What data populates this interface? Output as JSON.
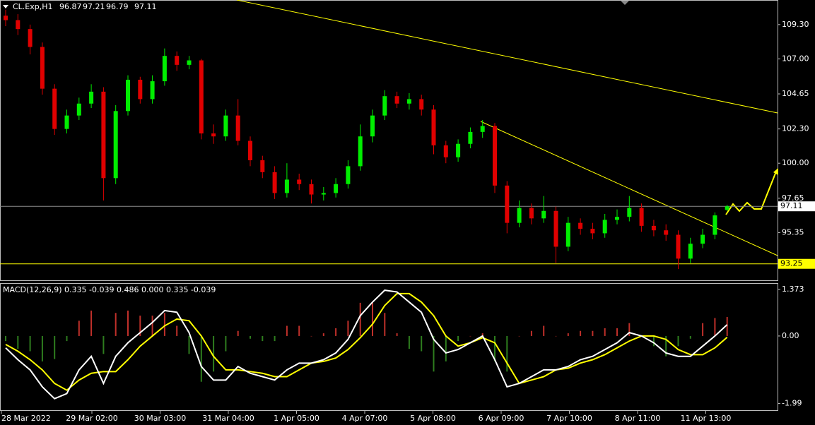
{
  "chart_data": [
    {
      "type": "candlestick",
      "title": "CL.Exp,H1",
      "open": [
        109.9,
        109.6,
        109.0,
        107.8,
        105.0,
        102.3,
        103.2,
        104.0,
        104.8,
        99.0,
        103.5,
        105.6,
        104.3,
        105.5,
        107.2,
        106.6,
        106.9,
        102.0,
        101.8,
        103.2,
        101.5,
        100.2,
        99.4,
        98.0,
        98.9,
        98.6,
        97.9,
        98.0,
        98.6,
        99.8,
        101.8,
        103.2,
        104.5,
        104.0,
        104.3,
        103.6,
        101.2,
        100.4,
        101.3,
        102.1,
        102.5,
        98.5,
        96.0,
        97.0,
        96.3,
        96.8,
        94.4,
        96.0,
        95.6,
        95.3,
        96.2,
        96.4,
        97.0,
        95.8,
        95.5,
        95.2,
        93.6,
        94.6,
        95.2,
        96.87
      ],
      "high": [
        110.3,
        110.0,
        109.3,
        108.1,
        105.3,
        103.6,
        104.4,
        105.3,
        105.1,
        103.9,
        105.9,
        105.8,
        105.9,
        107.7,
        107.5,
        107.2,
        107.0,
        102.6,
        103.6,
        104.3,
        101.8,
        100.5,
        99.8,
        100.0,
        99.3,
        98.9,
        98.4,
        99.0,
        100.2,
        102.6,
        103.6,
        104.9,
        104.8,
        104.7,
        104.6,
        103.9,
        101.5,
        101.6,
        102.4,
        102.9,
        102.7,
        98.8,
        97.5,
        97.3,
        97.8,
        97.1,
        96.4,
        96.3,
        96.0,
        96.6,
        96.9,
        97.8,
        97.3,
        96.2,
        95.9,
        95.5,
        95.0,
        95.6,
        96.7,
        97.21
      ],
      "low": [
        109.2,
        108.6,
        107.3,
        104.6,
        101.9,
        102.0,
        102.9,
        103.7,
        97.5,
        98.6,
        103.2,
        104.0,
        104.0,
        105.2,
        106.2,
        106.3,
        101.6,
        101.3,
        101.5,
        101.2,
        99.8,
        99.0,
        97.6,
        97.7,
        98.2,
        97.3,
        97.5,
        97.7,
        98.3,
        99.5,
        101.4,
        102.9,
        103.7,
        103.6,
        103.2,
        100.6,
        100.0,
        100.1,
        101.0,
        101.7,
        98.0,
        95.3,
        95.7,
        95.9,
        96.0,
        93.3,
        94.1,
        95.2,
        94.9,
        95.0,
        95.9,
        96.1,
        95.4,
        95.1,
        94.8,
        92.9,
        93.3,
        94.3,
        94.9,
        96.79
      ],
      "close": [
        109.6,
        109.0,
        107.8,
        105.0,
        102.3,
        103.2,
        104.0,
        104.8,
        99.0,
        103.5,
        105.6,
        104.3,
        105.5,
        107.2,
        106.6,
        106.9,
        102.0,
        101.8,
        103.2,
        101.5,
        100.2,
        99.4,
        98.0,
        98.9,
        98.6,
        97.9,
        98.0,
        98.6,
        99.8,
        101.8,
        103.2,
        104.5,
        104.0,
        104.3,
        103.6,
        101.2,
        100.4,
        101.3,
        102.1,
        102.5,
        98.5,
        96.0,
        97.0,
        96.3,
        96.8,
        94.4,
        96.0,
        95.6,
        95.3,
        96.2,
        96.4,
        97.0,
        95.8,
        95.5,
        95.2,
        93.6,
        94.6,
        95.2,
        96.5,
        97.11
      ],
      "up_color": "#00ee00",
      "down_color": "#e00000",
      "ylim": [
        92.1,
        110.95
      ],
      "yticks": [
        {
          "value": 109.3,
          "label": "109.30"
        },
        {
          "value": 107,
          "label": "107.00"
        },
        {
          "value": 104.65,
          "label": "104.65"
        },
        {
          "value": 102.3,
          "label": "102.30"
        },
        {
          "value": 100,
          "label": "100.00"
        },
        97.65,
        95.35
      ],
      "price_lines": [
        {
          "value": 97.11,
          "color": "#8c8c8c"
        },
        {
          "value": 93.25,
          "color": "#ffff00"
        }
      ],
      "time_labels": [
        "28 Mar 2022",
        "29 Mar 02:00",
        "30 Mar 03:00",
        "31 Mar 04:00",
        "1 Apr 05:00",
        "4 Apr 07:00",
        "5 Apr 08:00",
        "6 Apr 09:00",
        "7 Apr 10:00",
        "8 Apr 11:00",
        "11 Apr 13:00"
      ]
    },
    {
      "type": "macd",
      "title": "MACD(12,26,9) 0.335 -0.039 0.486 0.000 0.335 -0.039",
      "histogram": [
        -0.15,
        -0.38,
        -0.45,
        -0.75,
        -0.68,
        -0.15,
        0.45,
        0.75,
        -0.53,
        0.68,
        0.75,
        0.6,
        0.6,
        0.68,
        0.3,
        -0.53,
        -1.35,
        -1.05,
        -0.45,
        0.15,
        -0.08,
        -0.15,
        -0.15,
        0.3,
        0.3,
        0,
        0.08,
        0.23,
        0.45,
        0.98,
        0.98,
        0.68,
        0.08,
        -0.38,
        -0.45,
        -1.05,
        -0.75,
        -0.15,
        0,
        0.08,
        -0.75,
        -1.05,
        0,
        0.15,
        0.3,
        0,
        0.08,
        0.15,
        0.15,
        0.23,
        0.23,
        0.38,
        0,
        -0.3,
        -0.6,
        -0.3,
        -0.08,
        0.38,
        0.53,
        0.56
      ],
      "main": [
        -0.35,
        -0.7,
        -1.0,
        -1.5,
        -1.85,
        -1.7,
        -1.0,
        -0.6,
        -1.4,
        -0.6,
        -0.2,
        0.1,
        0.4,
        0.75,
        0.7,
        0.1,
        -0.9,
        -1.3,
        -1.3,
        -0.9,
        -1.1,
        -1.2,
        -1.3,
        -1.0,
        -0.8,
        -0.8,
        -0.7,
        -0.5,
        -0.1,
        0.6,
        1.0,
        1.35,
        1.3,
        1.0,
        0.7,
        -0.1,
        -0.5,
        -0.4,
        -0.2,
        0,
        -0.7,
        -1.5,
        -1.4,
        -1.2,
        -1.0,
        -1.0,
        -0.9,
        -0.7,
        -0.6,
        -0.4,
        -0.2,
        0.1,
        0,
        -0.2,
        -0.5,
        -0.6,
        -0.6,
        -0.3,
        0,
        0.335
      ],
      "signal": [
        -0.25,
        -0.45,
        -0.7,
        -1.0,
        -1.4,
        -1.6,
        -1.3,
        -1.1,
        -1.05,
        -1.05,
        -0.7,
        -0.3,
        0,
        0.3,
        0.5,
        0.45,
        0,
        -0.6,
        -1.0,
        -1.0,
        -1.05,
        -1.1,
        -1.2,
        -1.2,
        -1.0,
        -0.8,
        -0.75,
        -0.65,
        -0.4,
        -0.05,
        0.35,
        0.9,
        1.25,
        1.25,
        1.0,
        0.6,
        0,
        -0.3,
        -0.2,
        -0.05,
        -0.2,
        -0.8,
        -1.4,
        -1.3,
        -1.2,
        -1.0,
        -0.95,
        -0.8,
        -0.7,
        -0.55,
        -0.35,
        -0.15,
        0,
        0,
        -0.1,
        -0.4,
        -0.55,
        -0.55,
        -0.35,
        -0.039
      ],
      "hist_up_color": "#c0302a",
      "hist_down_color": "#2e7d1e",
      "main_color": "#ffffff",
      "signal_color": "#ffff00",
      "ylim": [
        -2.21,
        1.54
      ],
      "yticks": [
        1.373,
        {
          "value": 0,
          "label": "0.00"
        },
        -1.99
      ]
    }
  ]
}
